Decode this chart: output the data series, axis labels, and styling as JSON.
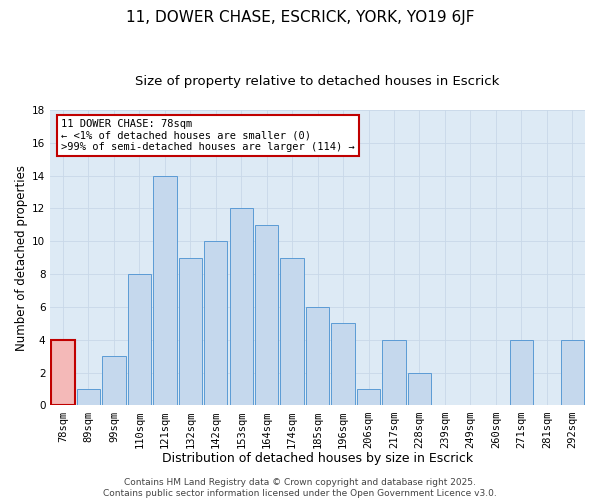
{
  "title": "11, DOWER CHASE, ESCRICK, YORK, YO19 6JF",
  "subtitle": "Size of property relative to detached houses in Escrick",
  "xlabel": "Distribution of detached houses by size in Escrick",
  "ylabel": "Number of detached properties",
  "bin_labels": [
    "78sqm",
    "89sqm",
    "99sqm",
    "110sqm",
    "121sqm",
    "132sqm",
    "142sqm",
    "153sqm",
    "164sqm",
    "174sqm",
    "185sqm",
    "196sqm",
    "206sqm",
    "217sqm",
    "228sqm",
    "239sqm",
    "249sqm",
    "260sqm",
    "271sqm",
    "281sqm",
    "292sqm"
  ],
  "values": [
    4,
    1,
    3,
    8,
    14,
    9,
    10,
    12,
    11,
    9,
    6,
    5,
    1,
    4,
    2,
    0,
    0,
    0,
    4,
    0,
    4
  ],
  "bar_color": "#c5d8ed",
  "bar_edge_color": "#5b9bd5",
  "highlight_bar_color": "#f4b9b8",
  "highlight_bar_edge_color": "#c00000",
  "highlight_index": 0,
  "ylim": [
    0,
    18
  ],
  "yticks": [
    0,
    2,
    4,
    6,
    8,
    10,
    12,
    14,
    16,
    18
  ],
  "grid_color": "#c8d8e8",
  "background_color": "#ddeaf5",
  "annotation_title": "11 DOWER CHASE: 78sqm",
  "annotation_line1": "← <1% of detached houses are smaller (0)",
  "annotation_line2": ">99% of semi-detached houses are larger (114) →",
  "annotation_box_edge": "#c00000",
  "footer_line1": "Contains HM Land Registry data © Crown copyright and database right 2025.",
  "footer_line2": "Contains public sector information licensed under the Open Government Licence v3.0.",
  "title_fontsize": 11,
  "subtitle_fontsize": 9.5,
  "xlabel_fontsize": 9,
  "ylabel_fontsize": 8.5,
  "tick_fontsize": 7.5,
  "footer_fontsize": 6.5
}
